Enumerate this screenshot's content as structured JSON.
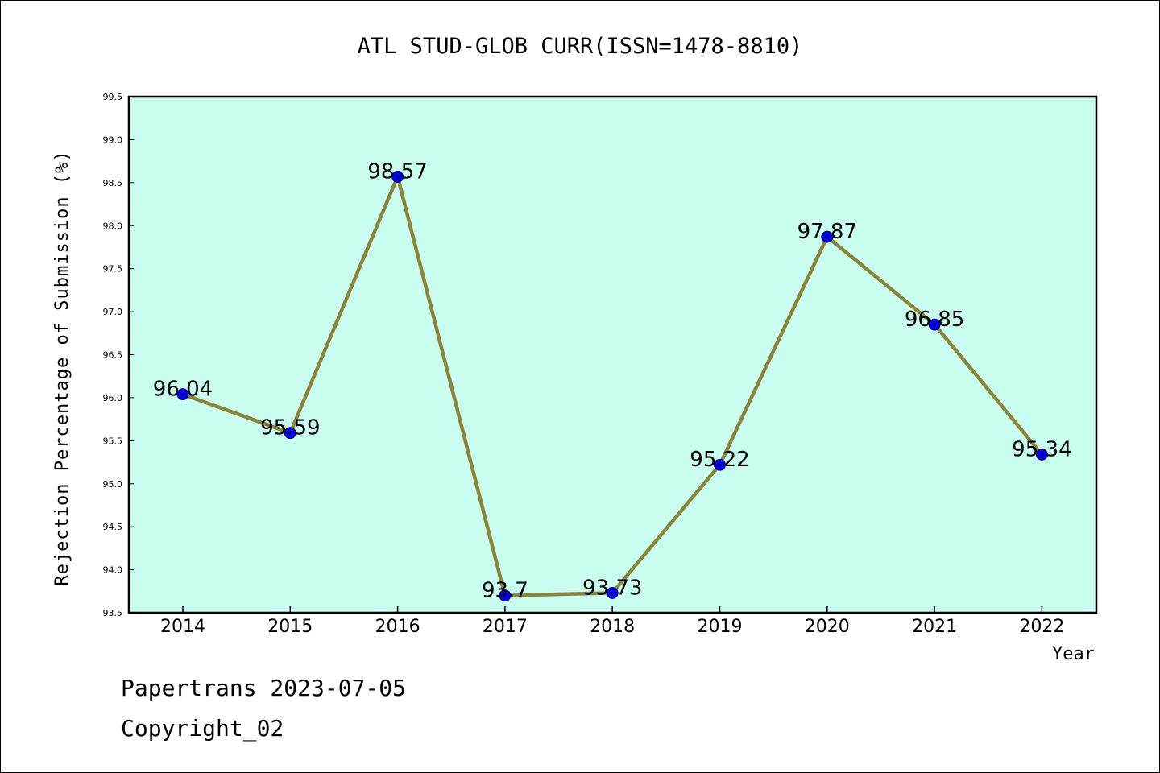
{
  "chart_data": {
    "type": "line",
    "title": "ATL STUD-GLOB CURR(ISSN=1478-8810)",
    "xlabel": "Year",
    "ylabel": "Rejection Percentage of Submission (%)",
    "categories": [
      "2014",
      "2015",
      "2016",
      "2017",
      "2018",
      "2019",
      "2020",
      "2021",
      "2022"
    ],
    "series": [
      {
        "values": [
          96.04,
          95.59,
          98.57,
          93.7,
          93.73,
          95.22,
          97.87,
          96.85,
          95.34
        ],
        "labels": [
          "96.04",
          "95.59",
          "98.57",
          "93.7",
          "93.73",
          "95.22",
          "97.87",
          "96.85",
          "95.34"
        ]
      }
    ],
    "ylim": [
      93.5,
      99.5
    ],
    "yticks": [
      "93.5",
      "94.0",
      "94.5",
      "95.0",
      "95.5",
      "96.0",
      "96.5",
      "97.0",
      "97.5",
      "98.0",
      "98.5",
      "99.0",
      "99.5"
    ],
    "grid": false,
    "colors": {
      "plot_background": "#c8fcee",
      "line": "#8b8338",
      "marker": "#0000ff"
    }
  },
  "footer": {
    "line1": "Papertrans 2023-07-05",
    "line2": "Copyright_02"
  }
}
